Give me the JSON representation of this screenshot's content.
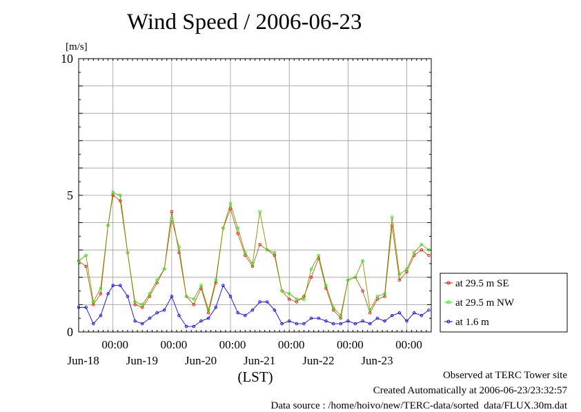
{
  "chart_data": {
    "type": "line",
    "title": "Wind Speed / 2006-06-23",
    "ylabel": "[m/s]",
    "xlabel": "(LST)",
    "ylim": [
      0,
      10
    ],
    "yticks": [
      0,
      5,
      10
    ],
    "x_unit": "hours since 2006-06-17 10:00 LST",
    "xlim": [
      0,
      144
    ],
    "x_ticks": [
      {
        "x": 14,
        "time": "00:00",
        "date": "Jun-18"
      },
      {
        "x": 38,
        "time": "00:00",
        "date": "Jun-19"
      },
      {
        "x": 62,
        "time": "00:00",
        "date": "Jun-20"
      },
      {
        "x": 86,
        "time": "00:00",
        "date": "Jun-21"
      },
      {
        "x": 110,
        "time": "00:00",
        "date": "Jun-22"
      },
      {
        "x": 134,
        "time": "00:00",
        "date": "Jun-23"
      }
    ],
    "x": [
      0,
      3,
      6,
      9,
      12,
      14,
      17,
      20,
      23,
      26,
      29,
      32,
      35,
      38,
      41,
      44,
      47,
      50,
      53,
      56,
      59,
      62,
      65,
      68,
      71,
      74,
      77,
      80,
      83,
      86,
      89,
      92,
      95,
      98,
      101,
      104,
      107,
      110,
      113,
      116,
      119,
      122,
      125,
      128,
      131,
      134,
      137,
      140,
      143
    ],
    "series": [
      {
        "name": "at 29.5 m SE",
        "color": "#ff0000",
        "values": [
          2.6,
          2.4,
          1.0,
          1.4,
          3.9,
          5.0,
          4.8,
          2.9,
          1.0,
          0.9,
          1.3,
          1.8,
          2.3,
          4.4,
          2.9,
          1.3,
          1.0,
          1.6,
          0.7,
          1.8,
          3.8,
          4.5,
          3.6,
          2.8,
          2.4,
          3.2,
          3.0,
          2.8,
          1.5,
          1.2,
          1.1,
          1.3,
          2.0,
          2.7,
          1.6,
          0.8,
          0.5,
          1.9,
          2.0,
          1.5,
          0.7,
          1.2,
          1.3,
          3.9,
          1.9,
          2.2,
          2.8,
          3.0,
          2.8
        ]
      },
      {
        "name": "at 29.5 m NW",
        "color": "#00ff00",
        "values": [
          2.6,
          2.8,
          1.1,
          1.6,
          3.9,
          5.1,
          5.0,
          2.9,
          1.1,
          1.0,
          1.4,
          1.9,
          2.3,
          4.1,
          3.1,
          1.3,
          1.2,
          1.7,
          0.8,
          1.9,
          3.8,
          4.7,
          3.8,
          2.9,
          2.5,
          4.4,
          3.0,
          2.9,
          1.5,
          1.4,
          1.2,
          1.2,
          2.3,
          2.8,
          1.7,
          0.9,
          0.6,
          1.9,
          2.0,
          2.6,
          0.8,
          1.3,
          1.4,
          4.2,
          2.1,
          2.3,
          2.9,
          3.2,
          3.0
        ]
      },
      {
        "name": "at 1.6 m",
        "color": "#0000ff",
        "values": [
          0.9,
          0.9,
          0.3,
          0.6,
          1.4,
          1.7,
          1.7,
          1.3,
          0.4,
          0.3,
          0.5,
          0.7,
          0.8,
          1.3,
          0.6,
          0.2,
          0.2,
          0.4,
          0.5,
          0.9,
          1.7,
          1.3,
          0.7,
          0.6,
          0.8,
          1.1,
          1.1,
          0.8,
          0.3,
          0.4,
          0.3,
          0.3,
          0.5,
          0.5,
          0.4,
          0.3,
          0.3,
          0.4,
          0.3,
          0.4,
          0.3,
          0.5,
          0.4,
          0.6,
          0.7,
          0.4,
          0.7,
          0.6,
          0.8
        ]
      }
    ],
    "legend": {
      "position": "right",
      "entries": [
        "at 29.5 m SE",
        "at 29.5 m NW",
        "at 1.6 m"
      ]
    },
    "grid": true
  },
  "footer": {
    "line1": "Observed at TERC Tower site",
    "line2": "Created Automatically at 2006-06-23/23:32:57",
    "line3": "Data source : /home/hoivo/new/TERC-data/sorted  data/FLUX.30m.dat"
  }
}
